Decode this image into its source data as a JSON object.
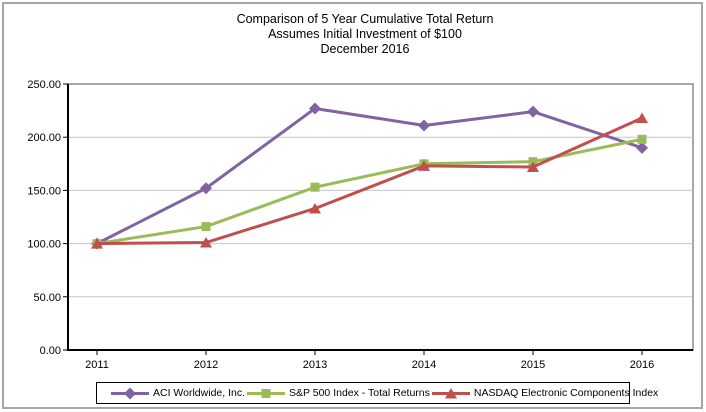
{
  "title": {
    "line1": "Comparison of 5 Year Cumulative Total Return",
    "line2": "Assumes Initial Investment of $100",
    "line3": "December 2016"
  },
  "chart_data": {
    "type": "line",
    "title": "Comparison of 5 Year Cumulative Total Return",
    "subtitle": "Assumes Initial Investment of $100",
    "date_label": "December 2016",
    "categories": [
      "2011",
      "2012",
      "2013",
      "2014",
      "2015",
      "2016"
    ],
    "series": [
      {
        "name": "ACI Worldwide, Inc.",
        "color": "#8064A2",
        "marker": "diamond",
        "values": [
          100,
          152,
          227,
          211,
          224,
          190
        ]
      },
      {
        "name": "S&P 500 Index - Total Returns",
        "color": "#9BBB59",
        "marker": "square",
        "values": [
          100,
          116,
          153,
          175,
          177,
          198
        ]
      },
      {
        "name": "NASDAQ Electronic Components Index",
        "color": "#C0504D",
        "marker": "triangle",
        "values": [
          100,
          101,
          133,
          173,
          172,
          218
        ]
      }
    ],
    "ylim": [
      0,
      250
    ],
    "yticks": [
      {
        "label": "0.00",
        "value": 0
      },
      {
        "label": "50.00",
        "value": 50
      },
      {
        "label": "100.00",
        "value": 100
      },
      {
        "label": "150.00",
        "value": 150
      },
      {
        "label": "200.00",
        "value": 200
      },
      {
        "label": "250.00",
        "value": 250
      }
    ],
    "grid": true,
    "legend_position": "bottom",
    "colors": {
      "gridline": "#C6C6C6",
      "plot_border": "#8C8C8C",
      "axis": "#000000",
      "text": "#000000"
    }
  }
}
